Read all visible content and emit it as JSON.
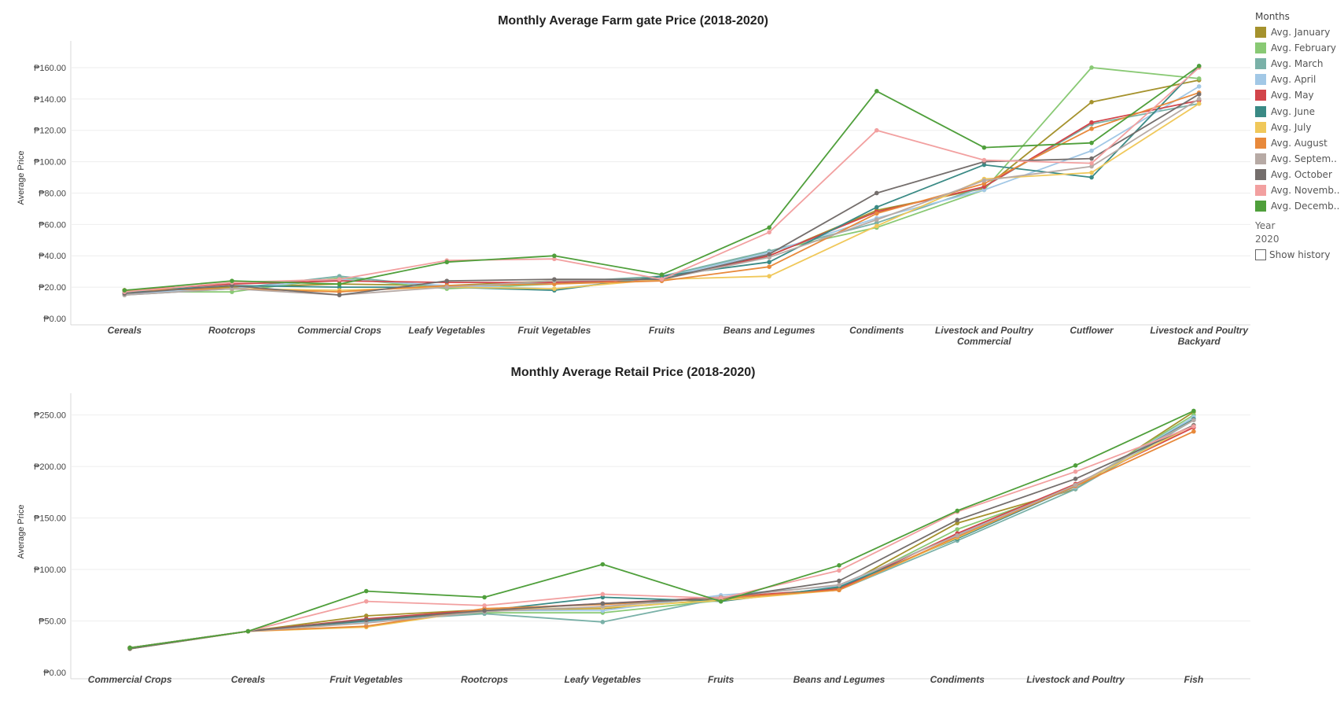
{
  "chart_data": [
    {
      "type": "line",
      "title": "Monthly Average Farm gate Price (2018-2020)",
      "xlabel": "",
      "ylabel": "Average Price",
      "ylim": [
        0,
        170
      ],
      "yticks": [
        0,
        20,
        40,
        60,
        80,
        100,
        120,
        140,
        160
      ],
      "ytick_labels": [
        "₱0.00",
        "₱20.00",
        "₱40.00",
        "₱60.00",
        "₱80.00",
        "₱100.00",
        "₱120.00",
        "₱140.00",
        "₱160.00"
      ],
      "categories": [
        "Cereals",
        "Rootcrops",
        "Commercial Crops",
        "Leafy Vegetables",
        "Fruit Vegetables",
        "Fruits",
        "Beans and Legumes",
        "Condiments",
        "Livestock and Poultry Commercial",
        "Cutflower",
        "Livestock and Poultry Backyard"
      ],
      "category_lines": [
        [
          "Cereals"
        ],
        [
          "Rootcrops"
        ],
        [
          "Commercial Crops"
        ],
        [
          "Leafy Vegetables"
        ],
        [
          "Fruit Vegetables"
        ],
        [
          "Fruits"
        ],
        [
          "Beans and Legumes"
        ],
        [
          "Condiments"
        ],
        [
          "Livestock and Poultry",
          "Commercial"
        ],
        [
          "Cutflower"
        ],
        [
          "Livestock and Poultry",
          "Backyard"
        ]
      ],
      "series": [
        {
          "name": "Avg. January",
          "values": [
            18,
            20,
            22,
            21,
            24,
            25,
            40,
            69,
            83,
            138,
            152
          ]
        },
        {
          "name": "Avg. February",
          "values": [
            17,
            17,
            26,
            19,
            22,
            26,
            43,
            58,
            82,
            160,
            153
          ]
        },
        {
          "name": "Avg. March",
          "values": [
            15,
            19,
            27,
            20,
            23,
            27,
            43,
            61,
            84,
            124,
            137
          ]
        },
        {
          "name": "Avg. April",
          "values": [
            16,
            19,
            25,
            21,
            19,
            26,
            42,
            64,
            82,
            107,
            148
          ]
        },
        {
          "name": "Avg. May",
          "values": [
            18,
            22,
            24,
            23,
            23,
            25,
            40,
            68,
            84,
            125,
            139
          ]
        },
        {
          "name": "Avg. June",
          "values": [
            17,
            21,
            20,
            20,
            18,
            27,
            36,
            71,
            98,
            90,
            161
          ]
        },
        {
          "name": "Avg. July",
          "values": [
            18,
            19,
            18,
            20,
            19,
            25,
            27,
            59,
            89,
            93,
            137
          ]
        },
        {
          "name": "Avg. August",
          "values": [
            18,
            19,
            17,
            21,
            22,
            24,
            33,
            67,
            86,
            121,
            144
          ]
        },
        {
          "name": "Avg. September",
          "values": [
            15,
            19,
            15,
            20,
            24,
            25,
            39,
            63,
            88,
            97,
            140
          ]
        },
        {
          "name": "Avg. October",
          "values": [
            16,
            21,
            15,
            24,
            25,
            25,
            41,
            80,
            100,
            102,
            143
          ]
        },
        {
          "name": "Avg. November",
          "values": [
            17,
            23,
            25,
            37,
            38,
            25,
            55,
            120,
            101,
            99,
            160
          ]
        },
        {
          "name": "Avg. December",
          "values": [
            18,
            24,
            22,
            36,
            40,
            28,
            58,
            145,
            109,
            112,
            161
          ]
        }
      ]
    },
    {
      "type": "line",
      "title": "Monthly Average Retail Price (2018-2020)",
      "xlabel": "",
      "ylabel": "Average Price",
      "ylim": [
        0,
        265
      ],
      "yticks": [
        0,
        50,
        100,
        150,
        200,
        250
      ],
      "ytick_labels": [
        "₱0.00",
        "₱50.00",
        "₱100.00",
        "₱150.00",
        "₱200.00",
        "₱250.00"
      ],
      "categories": [
        "Commercial Crops",
        "Cereals",
        "Fruit Vegetables",
        "Rootcrops",
        "Leafy Vegetables",
        "Fruits",
        "Beans and Legumes",
        "Condiments",
        "Livestock and Poultry",
        "Fish"
      ],
      "category_lines": [
        [
          "Commercial Crops"
        ],
        [
          "Cereals"
        ],
        [
          "Fruit Vegetables"
        ],
        [
          "Rootcrops"
        ],
        [
          "Leafy Vegetables"
        ],
        [
          "Fruits"
        ],
        [
          "Beans and Legumes"
        ],
        [
          "Condiments"
        ],
        [
          "Livestock and Poultry"
        ],
        [
          "Fish"
        ]
      ],
      "series": [
        {
          "name": "Avg. January",
          "values": [
            23,
            40,
            55,
            61,
            62,
            71,
            82,
            145,
            178,
            253
          ]
        },
        {
          "name": "Avg. February",
          "values": [
            24,
            40,
            51,
            58,
            58,
            70,
            81,
            139,
            180,
            250
          ]
        },
        {
          "name": "Avg. March",
          "values": [
            24,
            40,
            50,
            57,
            49,
            72,
            80,
            128,
            178,
            245
          ]
        },
        {
          "name": "Avg. April",
          "values": [
            24,
            40,
            49,
            60,
            60,
            75,
            84,
            134,
            180,
            248
          ]
        },
        {
          "name": "Avg. May",
          "values": [
            24,
            40,
            52,
            61,
            67,
            73,
            81,
            135,
            183,
            238
          ]
        },
        {
          "name": "Avg. June",
          "values": [
            24,
            40,
            50,
            60,
            73,
            69,
            83,
            130,
            181,
            246
          ]
        },
        {
          "name": "Avg. July",
          "values": [
            23,
            40,
            44,
            61,
            63,
            70,
            80,
            131,
            182,
            240
          ]
        },
        {
          "name": "Avg. August",
          "values": [
            24,
            40,
            45,
            62,
            66,
            72,
            80,
            132,
            181,
            234
          ]
        },
        {
          "name": "Avg. September",
          "values": [
            24,
            40,
            48,
            59,
            64,
            73,
            85,
            133,
            182,
            245
          ]
        },
        {
          "name": "Avg. October",
          "values": [
            23,
            40,
            51,
            60,
            67,
            72,
            89,
            148,
            188,
            240
          ]
        },
        {
          "name": "Avg. November",
          "values": [
            24,
            40,
            69,
            65,
            76,
            72,
            99,
            156,
            195,
            239
          ]
        },
        {
          "name": "Avg. December",
          "values": [
            24,
            40,
            79,
            73,
            105,
            69,
            104,
            157,
            201,
            254
          ]
        }
      ]
    }
  ],
  "series_colors": [
    "#a5922d",
    "#89c974",
    "#7ab1a8",
    "#a2c8e6",
    "#d2454a",
    "#3a8a85",
    "#f0c85a",
    "#e8893b",
    "#b7aaa5",
    "#746e6c",
    "#f2a0a0",
    "#4f9f3b"
  ],
  "legend": {
    "title": "Months",
    "items": [
      "Avg. January",
      "Avg. February",
      "Avg. March",
      "Avg. April",
      "Avg. May",
      "Avg. June",
      "Avg. July",
      "Avg. August",
      "Avg. Septem..",
      "Avg. October",
      "Avg. Novemb..",
      "Avg. Decemb.."
    ],
    "year_title": "Year",
    "year_value": "2020",
    "show_history_label": "Show history"
  }
}
